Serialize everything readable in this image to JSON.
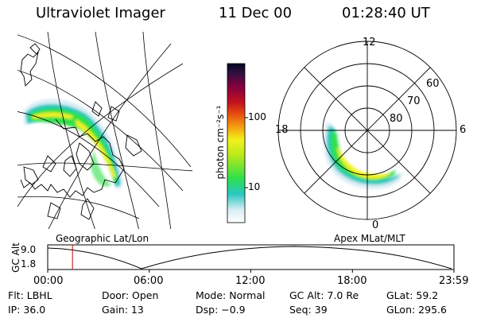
{
  "header": {
    "instrument": "Ultraviolet Imager",
    "date": "11 Dec 00",
    "time": "01:28:40 UT"
  },
  "colorbar": {
    "label": "photon cm⁻²s⁻¹",
    "ticks": [
      "100",
      "10"
    ]
  },
  "polar_plot": {
    "mlt_labels": {
      "top": "12",
      "left": "18",
      "right": "6",
      "bottom": "0"
    },
    "lat_labels": [
      "60",
      "70",
      "80"
    ]
  },
  "orbit_panel": {
    "left_title": "Geographic Lat/Lon",
    "right_title": "Apex MLat/MLT",
    "y_axis_label": "GC Alt",
    "y_ticks": [
      "9.0",
      "1.8"
    ],
    "x_ticks": [
      "00:00",
      "06:00",
      "12:00",
      "18:00",
      "23:59"
    ],
    "current_time_fraction": 0.061
  },
  "status": {
    "flt": "Flt: LBHL",
    "door": "Door: Open",
    "mode": "Mode: Normal",
    "gc_alt": "GC Alt: 7.0 Re",
    "glat": "GLat: 59.2",
    "ip": "IP: 36.0",
    "gain": "Gain: 13",
    "dsp": "Dsp:  −0.9",
    "seq": "Seq: 39",
    "glon": "GLon: 295.6"
  },
  "colors": {
    "aurora_high": "#f2f21a",
    "aurora_mid": "#2fe04a",
    "aurora_low": "#28c8c0",
    "aurora_faint": "#d8eef5",
    "time_marker": "#c00000"
  }
}
